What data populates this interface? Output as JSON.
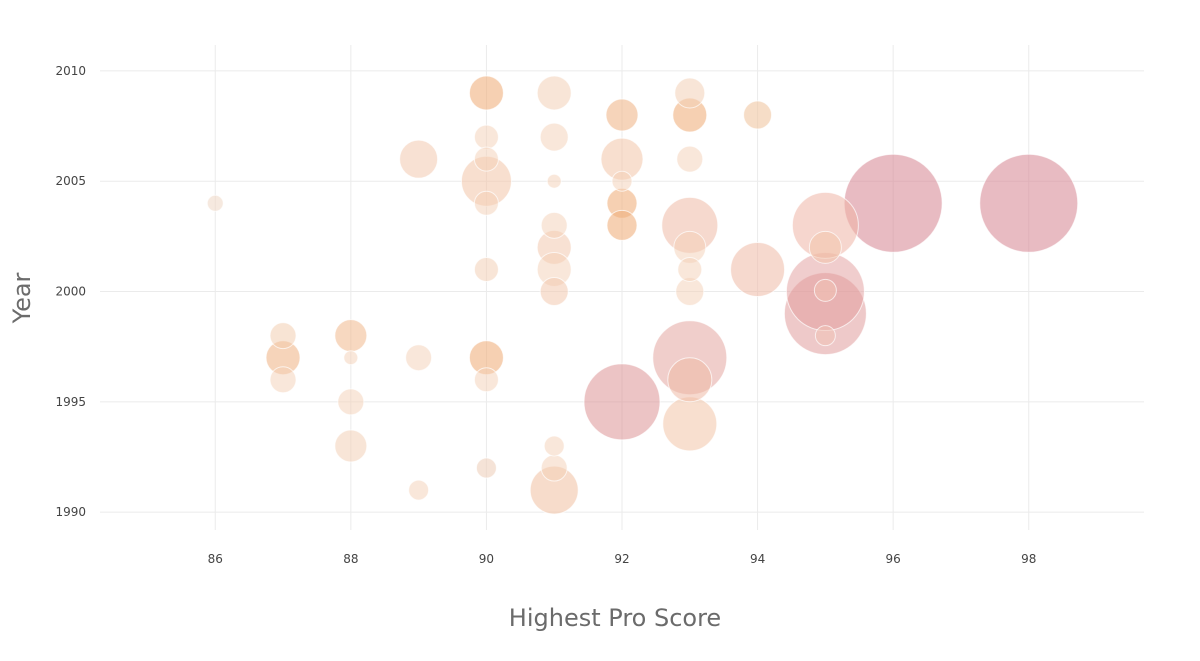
{
  "chart_data": {
    "type": "scatter",
    "xlabel": "Highest Pro Score",
    "ylabel": "Year",
    "xlim": [
      84.3,
      99.7
    ],
    "ylim": [
      1989.1,
      2011.4
    ],
    "x_ticks": [
      86,
      88,
      90,
      92,
      94,
      96,
      98
    ],
    "y_ticks": [
      1990,
      1995,
      2000,
      2005,
      2010
    ],
    "grid": true,
    "colors": {
      "light": "#f5c9a8",
      "medium": "#f0a46e",
      "dark": "#c9485f",
      "grid": "#ebebeb"
    },
    "points": [
      {
        "x": 86,
        "y": 2004,
        "size": 8,
        "color": "#eed7c5",
        "opacity": 0.55
      },
      {
        "x": 87,
        "y": 1998,
        "size": 13,
        "color": "#f2c9a9",
        "opacity": 0.5
      },
      {
        "x": 87,
        "y": 1997,
        "size": 17,
        "color": "#f0b88c",
        "opacity": 0.6
      },
      {
        "x": 87,
        "y": 1996,
        "size": 13,
        "color": "#f3d0b6",
        "opacity": 0.5
      },
      {
        "x": 88,
        "y": 1998,
        "size": 16,
        "color": "#f0b88c",
        "opacity": 0.55
      },
      {
        "x": 88,
        "y": 1997,
        "size": 7,
        "color": "#f3d0b6",
        "opacity": 0.5
      },
      {
        "x": 88,
        "y": 1995,
        "size": 13,
        "color": "#f3d0b6",
        "opacity": 0.5
      },
      {
        "x": 88,
        "y": 1993,
        "size": 16,
        "color": "#f3d0b6",
        "opacity": 0.55
      },
      {
        "x": 89,
        "y": 2006,
        "size": 19,
        "color": "#f2c9ae",
        "opacity": 0.55
      },
      {
        "x": 89,
        "y": 1997,
        "size": 13,
        "color": "#f3d0b6",
        "opacity": 0.5
      },
      {
        "x": 89,
        "y": 1991,
        "size": 10,
        "color": "#f3d0b6",
        "opacity": 0.5
      },
      {
        "x": 90,
        "y": 2009,
        "size": 17,
        "color": "#f0b07e",
        "opacity": 0.6
      },
      {
        "x": 90,
        "y": 2007,
        "size": 12,
        "color": "#f3d0b6",
        "opacity": 0.5
      },
      {
        "x": 90,
        "y": 2006,
        "size": 12,
        "color": "#f3d0b6",
        "opacity": 0.5
      },
      {
        "x": 90,
        "y": 2005,
        "size": 25,
        "color": "#f2c4a8",
        "opacity": 0.55
      },
      {
        "x": 90,
        "y": 2004,
        "size": 12,
        "color": "#f3d0b6",
        "opacity": 0.5
      },
      {
        "x": 90,
        "y": 2001,
        "size": 12,
        "color": "#f3d0b6",
        "opacity": 0.55
      },
      {
        "x": 90,
        "y": 1997,
        "size": 17,
        "color": "#f0b07e",
        "opacity": 0.6
      },
      {
        "x": 90,
        "y": 1996,
        "size": 12,
        "color": "#f3d0b6",
        "opacity": 0.5
      },
      {
        "x": 90,
        "y": 1992,
        "size": 10,
        "color": "#eed0bc",
        "opacity": 0.6
      },
      {
        "x": 91,
        "y": 2009,
        "size": 17,
        "color": "#f3d0b6",
        "opacity": 0.55
      },
      {
        "x": 91,
        "y": 2007,
        "size": 14,
        "color": "#f3d0b6",
        "opacity": 0.5
      },
      {
        "x": 91,
        "y": 2005,
        "size": 7,
        "color": "#f3d0b6",
        "opacity": 0.5
      },
      {
        "x": 91,
        "y": 2003,
        "size": 13,
        "color": "#f3d0b6",
        "opacity": 0.5
      },
      {
        "x": 91,
        "y": 2002,
        "size": 17,
        "color": "#f2c9ae",
        "opacity": 0.55
      },
      {
        "x": 91,
        "y": 2001,
        "size": 17,
        "color": "#f3d0b6",
        "opacity": 0.5
      },
      {
        "x": 91,
        "y": 2000,
        "size": 14,
        "color": "#f2c9ae",
        "opacity": 0.55
      },
      {
        "x": 91,
        "y": 1993,
        "size": 10,
        "color": "#f3d0b6",
        "opacity": 0.5
      },
      {
        "x": 91,
        "y": 1992,
        "size": 13,
        "color": "#f3d0b6",
        "opacity": 0.5
      },
      {
        "x": 91,
        "y": 1991,
        "size": 24,
        "color": "#f2c4a8",
        "opacity": 0.6
      },
      {
        "x": 92,
        "y": 2008,
        "size": 16,
        "color": "#f0b88c",
        "opacity": 0.6
      },
      {
        "x": 92,
        "y": 2006,
        "size": 21,
        "color": "#f2c4a8",
        "opacity": 0.55
      },
      {
        "x": 92,
        "y": 2005,
        "size": 10,
        "color": "#f3d0b6",
        "opacity": 0.5
      },
      {
        "x": 92,
        "y": 2004,
        "size": 15,
        "color": "#f0b07e",
        "opacity": 0.6
      },
      {
        "x": 92,
        "y": 2003,
        "size": 15,
        "color": "#f0b07e",
        "opacity": 0.6
      },
      {
        "x": 92,
        "y": 1995,
        "size": 38,
        "color": "#d98a8c",
        "opacity": 0.5
      },
      {
        "x": 93,
        "y": 2009,
        "size": 15,
        "color": "#f3d0b6",
        "opacity": 0.55
      },
      {
        "x": 93,
        "y": 2008,
        "size": 17,
        "color": "#f0b07e",
        "opacity": 0.6
      },
      {
        "x": 93,
        "y": 2006,
        "size": 13,
        "color": "#f3d0b6",
        "opacity": 0.5
      },
      {
        "x": 93,
        "y": 2003,
        "size": 28,
        "color": "#efb9a6",
        "opacity": 0.55
      },
      {
        "x": 93,
        "y": 2002,
        "size": 16,
        "color": "#f3d0b6",
        "opacity": 0.5
      },
      {
        "x": 93,
        "y": 2001,
        "size": 12,
        "color": "#f3d0b6",
        "opacity": 0.5
      },
      {
        "x": 93,
        "y": 2000,
        "size": 14,
        "color": "#f3d0b6",
        "opacity": 0.5
      },
      {
        "x": 93,
        "y": 1997,
        "size": 37,
        "color": "#e3a5a0",
        "opacity": 0.55
      },
      {
        "x": 93,
        "y": 1996,
        "size": 22,
        "color": "#efb9a6",
        "opacity": 0.55
      },
      {
        "x": 93,
        "y": 1994,
        "size": 27,
        "color": "#f2c4a8",
        "opacity": 0.55
      },
      {
        "x": 94,
        "y": 2008,
        "size": 14,
        "color": "#f0c7a2",
        "opacity": 0.6
      },
      {
        "x": 94,
        "y": 2001,
        "size": 27,
        "color": "#efb9a6",
        "opacity": 0.55
      },
      {
        "x": 95,
        "y": 2003,
        "size": 33,
        "color": "#efb5a6",
        "opacity": 0.55
      },
      {
        "x": 95,
        "y": 2002,
        "size": 16,
        "color": "#f2c4a8",
        "opacity": 0.5
      },
      {
        "x": 95,
        "y": 2000,
        "size": 39,
        "color": "#e19c9c",
        "opacity": 0.5
      },
      {
        "x": 95,
        "y": 1999,
        "size": 41,
        "color": "#de9494",
        "opacity": 0.5
      },
      {
        "x": 95,
        "y": 1998,
        "size": 10,
        "color": "#f0c2b4",
        "opacity": 0.5
      },
      {
        "x": 95,
        "y": 2000.05,
        "size": 11,
        "color": "#f0c2b4",
        "opacity": 0.55
      },
      {
        "x": 96,
        "y": 2004,
        "size": 49,
        "color": "#d58390",
        "opacity": 0.55
      },
      {
        "x": 98,
        "y": 2004,
        "size": 49,
        "color": "#d58390",
        "opacity": 0.55
      }
    ]
  }
}
